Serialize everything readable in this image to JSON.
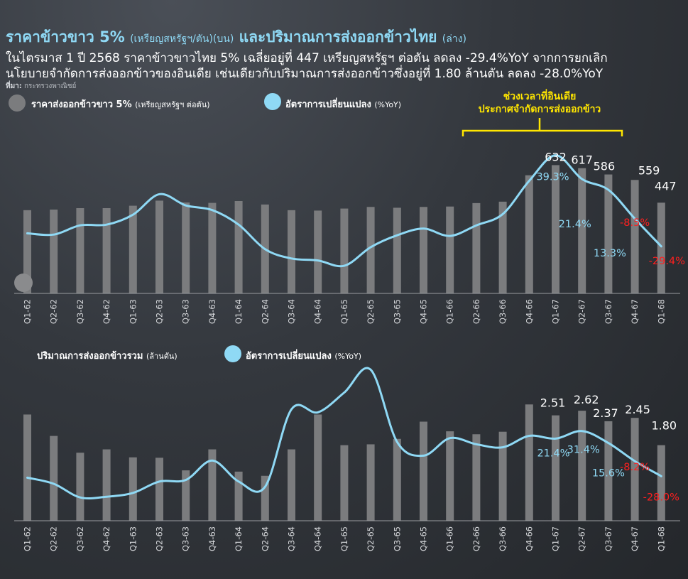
{
  "header": {
    "title_main": "ราคาข้าวขาว 5%",
    "title_unit": "(เหรียญสหรัฐฯ/ตัน)(บน)",
    "title_and": "และปริมาณการส่งออกข้าวไทย",
    "title_lower": "(ล่าง)",
    "subtitle_line1": "ในไตรมาส 1 ปี 2568 ราคาข้าวขาวไทย 5% เฉลี่ยอยู่ที่ 447 เหรียญสหรัฐฯ ต่อตัน ลดลง -29.4%YoY จากการยกเลิก",
    "subtitle_line2": "นโยบายจำกัดการส่งออกข้าวของอินเดีย เช่นเดียวกับปริมาณการส่งออกข้าวซึ่งอยู่ที่ 1.80 ล้านตัน ลดลง -28.0%YoY",
    "source_label": "ที่มา:",
    "source_text": "กระทรวงพาณิชย์"
  },
  "colors": {
    "bar": "#7b7c7e",
    "line": "#8fd9f5",
    "negative": "#ff1f1f",
    "annotation": "#ffe600",
    "positive_label": "#8fd9f5"
  },
  "legend_top": {
    "bar_label": "ราคาส่งออกข้าวขาว 5%",
    "bar_unit": "(เหรียญสหรัฐฯ ต่อตัน)",
    "line_label": "อัตราการเปลี่ยนแปลง",
    "line_unit": "(%YoY)"
  },
  "legend_bottom": {
    "bar_label": "ปริมาณการส่งออกข้าวรวม",
    "bar_unit": "(ล้านตัน)",
    "line_label": "อัตราการเปลี่ยนแปลง",
    "line_unit": "(%YoY)"
  },
  "annotation": {
    "line1": "ช่วงเวลาที่อินเดีย",
    "line2": "ประกาศจำกัดการส่งออกข้าว"
  },
  "chart_data": [
    {
      "type": "bar",
      "name": "price",
      "categories": [
        "Q1-62",
        "Q2-62",
        "Q3-62",
        "Q4-62",
        "Q1-63",
        "Q2-63",
        "Q3-63",
        "Q4-63",
        "Q1-64",
        "Q2-64",
        "Q3-64",
        "Q4-64",
        "Q1-65",
        "Q2-65",
        "Q3-65",
        "Q4-65",
        "Q1-66",
        "Q2-66",
        "Q3-66",
        "Q4-66",
        "Q1-67",
        "Q2-67",
        "Q3-67",
        "Q4-67",
        "Q1-68"
      ],
      "series": [
        {
          "name": "ราคาส่งออกข้าวขาว 5%",
          "axis": "bar",
          "values": [
            410,
            413,
            420,
            420,
            432,
            457,
            448,
            446,
            455,
            438,
            410,
            408,
            418,
            426,
            422,
            426,
            428,
            445,
            452,
            582,
            632,
            617,
            586,
            559,
            447
          ]
        },
        {
          "name": "อัตราการเปลี่ยนแปลง",
          "axis": "line",
          "values": [
            -19.5,
            -20.5,
            -13.5,
            -13.0,
            -5.5,
            10.0,
            1.5,
            -2.0,
            -13.0,
            -31.5,
            -38.5,
            -40.0,
            -44.0,
            -30.0,
            -21.0,
            -16.0,
            -21.5,
            -13.5,
            -5.0,
            20.0,
            39.3,
            21.4,
            13.3,
            -8.5,
            -29.4
          ]
        }
      ],
      "data_labels": {
        "bar": {
          "20": "632",
          "21": "617",
          "22": "586",
          "23": "559",
          "24": "447"
        },
        "line": {
          "20": "39.3%",
          "21": "21.4%",
          "22": "13.3%",
          "23": "-8.5%",
          "24": "-29.4%"
        }
      },
      "ylim_bar": [
        0,
        700
      ],
      "ylim_line": [
        -52,
        45
      ]
    },
    {
      "type": "bar",
      "name": "volume",
      "categories": [
        "Q1-62",
        "Q2-62",
        "Q3-62",
        "Q4-62",
        "Q1-63",
        "Q2-63",
        "Q3-63",
        "Q4-63",
        "Q1-64",
        "Q2-64",
        "Q3-64",
        "Q4-64",
        "Q1-65",
        "Q2-65",
        "Q3-65",
        "Q4-65",
        "Q1-66",
        "Q2-66",
        "Q3-66",
        "Q4-66",
        "Q1-67",
        "Q2-67",
        "Q3-67",
        "Q4-67",
        "Q1-68"
      ],
      "series": [
        {
          "name": "ปริมาณการส่งออกข้าวรวม",
          "axis": "bar",
          "values": [
            2.53,
            2.02,
            1.62,
            1.7,
            1.51,
            1.5,
            1.2,
            1.7,
            1.17,
            1.07,
            1.7,
            2.53,
            1.8,
            1.82,
            1.95,
            2.36,
            2.13,
            2.06,
            2.12,
            2.77,
            2.51,
            2.62,
            2.37,
            2.45,
            1.8
          ]
        },
        {
          "name": "อัตราการเปลี่ยนแปลง",
          "axis": "line",
          "values": [
            -30.0,
            -38.0,
            -56.0,
            -55.0,
            -50.0,
            -35.0,
            -33.0,
            -7.5,
            -35.0,
            -42.0,
            60.0,
            56.0,
            82.0,
            112.0,
            17.0,
            -1.0,
            22.0,
            14.0,
            10.0,
            25.0,
            21.4,
            31.4,
            15.6,
            -8.2,
            -28.0
          ]
        }
      ],
      "data_labels": {
        "bar": {
          "20": "2.51",
          "21": "2.62",
          "22": "2.37",
          "23": "2.45",
          "24": "1.80"
        },
        "line": {
          "20": "21.4%",
          "21": "31.4%",
          "22": "15.6%",
          "23": "-8.2%",
          "24": "-28.0%"
        }
      },
      "ylim_bar": [
        0,
        3.35
      ],
      "ylim_line": [
        -67,
        118
      ]
    }
  ]
}
